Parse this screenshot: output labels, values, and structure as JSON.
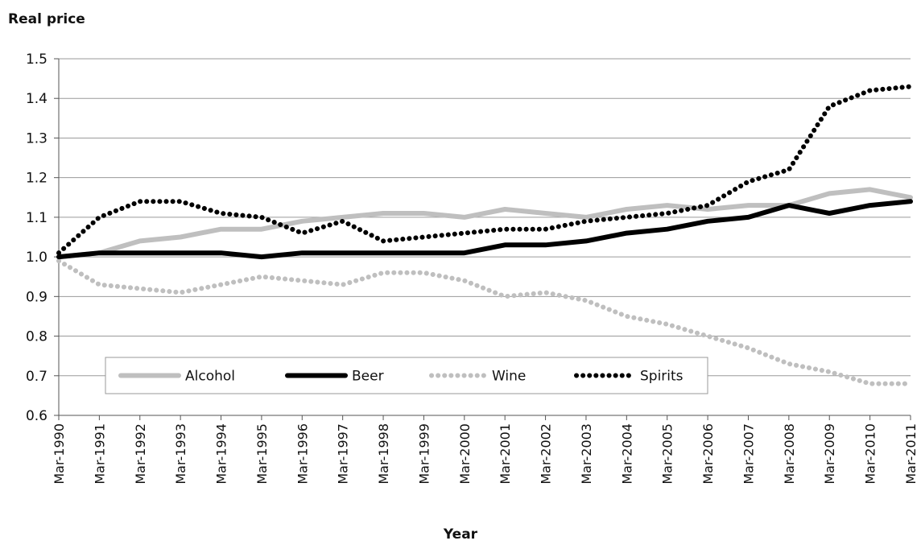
{
  "chart_data": {
    "type": "line",
    "ylabel": "Real price",
    "xlabel": "Year",
    "ylim": [
      0.6,
      1.5
    ],
    "yticks": [
      "0.6",
      "0.7",
      "0.8",
      "0.9",
      "1.0",
      "1.1",
      "1.2",
      "1.3",
      "1.4",
      "1.5"
    ],
    "categories": [
      "Mar-1990",
      "Mar-1991",
      "Mar-1992",
      "Mar-1993",
      "Mar-1994",
      "Mar-1995",
      "Mar-1996",
      "Mar-1997",
      "Mar-1998",
      "Mar-1999",
      "Mar-2000",
      "Mar-2001",
      "Mar-2002",
      "Mar-2003",
      "Mar-2004",
      "Mar-2005",
      "Mar-2006",
      "Mar-2007",
      "Mar-2008",
      "Mar-2009",
      "Mar-2010",
      "Mar-2011"
    ],
    "grid": true,
    "legend_position": "bottom-left inside",
    "series": [
      {
        "name": "Alcohol",
        "color": "#bfbfbf",
        "style": "solid",
        "values": [
          1.0,
          1.01,
          1.04,
          1.05,
          1.07,
          1.07,
          1.09,
          1.1,
          1.11,
          1.11,
          1.1,
          1.12,
          1.11,
          1.1,
          1.12,
          1.13,
          1.12,
          1.13,
          1.13,
          1.16,
          1.17,
          1.15
        ]
      },
      {
        "name": "Beer",
        "color": "#000000",
        "style": "solid",
        "values": [
          1.0,
          1.01,
          1.01,
          1.01,
          1.01,
          1.0,
          1.01,
          1.01,
          1.01,
          1.01,
          1.01,
          1.03,
          1.03,
          1.04,
          1.06,
          1.07,
          1.09,
          1.1,
          1.13,
          1.11,
          1.13,
          1.14
        ]
      },
      {
        "name": "Wine",
        "color": "#bfbfbf",
        "style": "dotted",
        "values": [
          0.99,
          0.93,
          0.92,
          0.91,
          0.93,
          0.95,
          0.94,
          0.93,
          0.96,
          0.96,
          0.94,
          0.9,
          0.91,
          0.89,
          0.85,
          0.83,
          0.8,
          0.77,
          0.73,
          0.71,
          0.68,
          0.68
        ]
      },
      {
        "name": "Spirits",
        "color": "#000000",
        "style": "dotted",
        "values": [
          1.01,
          1.1,
          1.14,
          1.14,
          1.11,
          1.1,
          1.06,
          1.09,
          1.04,
          1.05,
          1.06,
          1.07,
          1.07,
          1.09,
          1.1,
          1.11,
          1.13,
          1.19,
          1.22,
          1.38,
          1.42,
          1.43
        ]
      }
    ]
  }
}
